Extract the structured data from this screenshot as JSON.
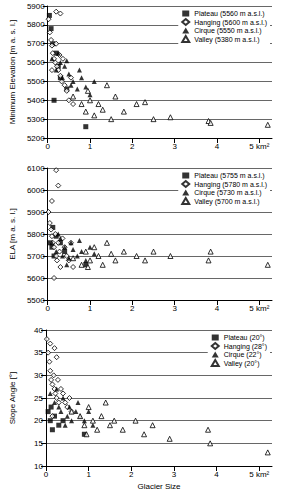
{
  "chart_data": [
    {
      "type": "scatter",
      "ylabel": "Minimum Elevation [m a. s. l.]",
      "xlim": [
        0,
        5.3
      ],
      "xticks": [
        0,
        1,
        2,
        3,
        4,
        {
          "value": 5,
          "label": "5 km²"
        }
      ],
      "ylim": [
        5200,
        5900
      ],
      "yticks": [
        5200,
        5300,
        5400,
        5500,
        5600,
        5700,
        5800,
        5900
      ],
      "grid": true,
      "legend": "upper right",
      "series": [
        {
          "name": "Plateau (5560 m a.s.l.)",
          "color": "#000000",
          "marker": "square",
          "values": [
            [
              0.04,
              5850
            ],
            [
              0.08,
              5780
            ],
            [
              0.12,
              5700
            ],
            [
              0.2,
              5650
            ],
            [
              0.25,
              5580
            ],
            [
              0.3,
              5520
            ],
            [
              0.45,
              5460
            ],
            [
              0.9,
              5260
            ],
            [
              0.15,
              5400
            ]
          ]
        },
        {
          "name": "Hanging (5600 m a.s.l.)",
          "color": "#000000",
          "marker": "open_diamond",
          "values": [
            [
              0.02,
              5830
            ],
            [
              0.05,
              5760
            ],
            [
              0.08,
              5720
            ],
            [
              0.1,
              5690
            ],
            [
              0.12,
              5650
            ],
            [
              0.15,
              5620
            ],
            [
              0.18,
              5600
            ],
            [
              0.2,
              5700
            ],
            [
              0.22,
              5580
            ],
            [
              0.25,
              5560
            ],
            [
              0.28,
              5640
            ],
            [
              0.3,
              5530
            ],
            [
              0.33,
              5500
            ],
            [
              0.36,
              5620
            ],
            [
              0.4,
              5480
            ],
            [
              0.45,
              5450
            ],
            [
              0.5,
              5400
            ],
            [
              0.55,
              5520
            ],
            [
              0.6,
              5380
            ],
            [
              0.2,
              5870
            ],
            [
              0.3,
              5860
            ],
            [
              0.1,
              5560
            ]
          ]
        },
        {
          "name": "Cirque (5550 m a.s.l.)",
          "color": "#000000",
          "marker": "triangle",
          "values": [
            [
              0.1,
              5620
            ],
            [
              0.2,
              5560
            ],
            [
              0.3,
              5600
            ],
            [
              0.35,
              5520
            ],
            [
              0.4,
              5580
            ],
            [
              0.5,
              5540
            ],
            [
              0.55,
              5480
            ],
            [
              0.6,
              5500
            ],
            [
              0.7,
              5460
            ],
            [
              0.75,
              5560
            ],
            [
              0.8,
              5520
            ],
            [
              0.9,
              5470
            ],
            [
              1.0,
              5430
            ],
            [
              1.1,
              5500
            ],
            [
              0.25,
              5650
            ],
            [
              0.45,
              5610
            ]
          ]
        },
        {
          "name": "Valley (5380 m a.s.l.)",
          "color": "#000000",
          "marker": "open_triangle",
          "values": [
            [
              0.6,
              5420
            ],
            [
              0.8,
              5380
            ],
            [
              0.9,
              5340
            ],
            [
              1.0,
              5400
            ],
            [
              1.1,
              5320
            ],
            [
              1.2,
              5380
            ],
            [
              1.3,
              5350
            ],
            [
              1.5,
              5300
            ],
            [
              1.6,
              5420
            ],
            [
              1.8,
              5340
            ],
            [
              2.1,
              5380
            ],
            [
              2.3,
              5390
            ],
            [
              2.5,
              5300
            ],
            [
              2.9,
              5310
            ],
            [
              3.8,
              5290
            ],
            [
              3.85,
              5280
            ],
            [
              5.2,
              5270
            ],
            [
              1.4,
              5480
            ],
            [
              0.95,
              5450
            ]
          ]
        }
      ]
    },
    {
      "type": "scatter",
      "ylabel": "ELA [m a. s. l.]",
      "xlim": [
        0,
        5.3
      ],
      "xticks": [
        0,
        1,
        2,
        3,
        4,
        {
          "value": 5,
          "label": "5 km²"
        }
      ],
      "ylim": [
        5500,
        6100
      ],
      "yticks": [
        5500,
        5600,
        5700,
        5800,
        5900,
        6000,
        6100
      ],
      "grid": true,
      "legend": "upper right",
      "series": [
        {
          "name": "Plateau (5755 m a.s.l.)",
          "color": "#000000",
          "marker": "square",
          "values": [
            [
              0.05,
              5760
            ],
            [
              0.1,
              5740
            ],
            [
              0.15,
              5700
            ],
            [
              0.2,
              5790
            ],
            [
              0.3,
              5760
            ],
            [
              0.4,
              5720
            ],
            [
              0.9,
              5660
            ],
            [
              0.12,
              5830
            ]
          ]
        },
        {
          "name": "Hanging (5780 m a.s.l.)",
          "color": "#000000",
          "marker": "open_diamond",
          "values": [
            [
              0.02,
              5900
            ],
            [
              0.05,
              5850
            ],
            [
              0.08,
              5820
            ],
            [
              0.1,
              5790
            ],
            [
              0.12,
              5760
            ],
            [
              0.15,
              5740
            ],
            [
              0.18,
              5800
            ],
            [
              0.2,
              5700
            ],
            [
              0.22,
              5680
            ],
            [
              0.25,
              5760
            ],
            [
              0.28,
              5720
            ],
            [
              0.3,
              5650
            ],
            [
              0.35,
              5780
            ],
            [
              0.4,
              5740
            ],
            [
              0.45,
              5700
            ],
            [
              0.5,
              5680
            ],
            [
              0.55,
              5760
            ],
            [
              0.6,
              5650
            ],
            [
              0.2,
              6090
            ],
            [
              0.25,
              6020
            ],
            [
              0.1,
              5950
            ],
            [
              0.15,
              5600
            ]
          ]
        },
        {
          "name": "Cirque (5730 m a.s.l.)",
          "color": "#000000",
          "marker": "triangle",
          "values": [
            [
              0.1,
              5760
            ],
            [
              0.2,
              5720
            ],
            [
              0.3,
              5780
            ],
            [
              0.35,
              5700
            ],
            [
              0.4,
              5740
            ],
            [
              0.5,
              5690
            ],
            [
              0.55,
              5760
            ],
            [
              0.6,
              5730
            ],
            [
              0.7,
              5700
            ],
            [
              0.75,
              5770
            ],
            [
              0.8,
              5720
            ],
            [
              0.9,
              5680
            ],
            [
              1.0,
              5740
            ],
            [
              1.1,
              5710
            ],
            [
              0.25,
              5800
            ],
            [
              0.45,
              5660
            ]
          ]
        },
        {
          "name": "Valley (5700 m a.s.l.)",
          "color": "#000000",
          "marker": "open_triangle",
          "values": [
            [
              0.6,
              5690
            ],
            [
              0.8,
              5660
            ],
            [
              0.9,
              5720
            ],
            [
              1.0,
              5680
            ],
            [
              1.1,
              5740
            ],
            [
              1.2,
              5700
            ],
            [
              1.3,
              5660
            ],
            [
              1.5,
              5710
            ],
            [
              1.6,
              5680
            ],
            [
              1.8,
              5720
            ],
            [
              2.1,
              5700
            ],
            [
              2.3,
              5680
            ],
            [
              2.5,
              5720
            ],
            [
              2.9,
              5700
            ],
            [
              3.8,
              5680
            ],
            [
              3.85,
              5720
            ],
            [
              5.2,
              5660
            ],
            [
              1.4,
              5760
            ],
            [
              0.95,
              5650
            ]
          ]
        }
      ]
    },
    {
      "type": "scatter",
      "ylabel": "Slope Angle [°]",
      "xlabel": "Glacier Size",
      "xlim": [
        0,
        5.3
      ],
      "xticks": [
        0,
        1,
        2,
        3,
        4,
        {
          "value": 5,
          "label": "5 km²"
        }
      ],
      "ylim": [
        10,
        40
      ],
      "yticks": [
        10,
        15,
        20,
        25,
        30,
        35,
        40
      ],
      "grid": true,
      "legend": "upper right",
      "series": [
        {
          "name": "Plateau (20°)",
          "color": "#000000",
          "marker": "square",
          "values": [
            [
              0.05,
              22
            ],
            [
              0.1,
              20
            ],
            [
              0.15,
              18
            ],
            [
              0.2,
              21
            ],
            [
              0.3,
              19
            ],
            [
              0.4,
              20
            ],
            [
              0.9,
              17
            ],
            [
              0.12,
              23
            ]
          ]
        },
        {
          "name": "Hanging (28°)",
          "color": "#000000",
          "marker": "open_diamond",
          "values": [
            [
              0.02,
              38
            ],
            [
              0.05,
              35
            ],
            [
              0.08,
              33
            ],
            [
              0.1,
              31
            ],
            [
              0.12,
              29
            ],
            [
              0.15,
              28
            ],
            [
              0.18,
              30
            ],
            [
              0.2,
              27
            ],
            [
              0.22,
              26
            ],
            [
              0.25,
              25
            ],
            [
              0.28,
              29
            ],
            [
              0.3,
              24
            ],
            [
              0.35,
              27
            ],
            [
              0.4,
              26
            ],
            [
              0.45,
              24
            ],
            [
              0.5,
              23
            ],
            [
              0.55,
              25
            ],
            [
              0.6,
              22
            ],
            [
              0.2,
              36
            ],
            [
              0.25,
              34
            ],
            [
              0.1,
              37
            ],
            [
              0.15,
              21
            ]
          ]
        },
        {
          "name": "Cirque (22°)",
          "color": "#000000",
          "marker": "triangle",
          "values": [
            [
              0.1,
              26
            ],
            [
              0.2,
              24
            ],
            [
              0.3,
              23
            ],
            [
              0.35,
              22
            ],
            [
              0.4,
              25
            ],
            [
              0.5,
              21
            ],
            [
              0.55,
              23
            ],
            [
              0.6,
              20
            ],
            [
              0.7,
              22
            ],
            [
              0.75,
              24
            ],
            [
              0.8,
              21
            ],
            [
              0.9,
              20
            ],
            [
              1.0,
              22
            ],
            [
              1.1,
              19
            ],
            [
              0.25,
              27
            ],
            [
              0.45,
              19
            ]
          ]
        },
        {
          "name": "Valley (20°)",
          "color": "#000000",
          "marker": "open_triangle",
          "values": [
            [
              0.6,
              22
            ],
            [
              0.8,
              21
            ],
            [
              0.9,
              19
            ],
            [
              1.0,
              23
            ],
            [
              1.1,
              20
            ],
            [
              1.2,
              18
            ],
            [
              1.3,
              21
            ],
            [
              1.5,
              19
            ],
            [
              1.6,
              20
            ],
            [
              1.8,
              18
            ],
            [
              2.1,
              20
            ],
            [
              2.3,
              17
            ],
            [
              2.5,
              19
            ],
            [
              2.9,
              16
            ],
            [
              3.8,
              18
            ],
            [
              3.85,
              15
            ],
            [
              5.2,
              13
            ],
            [
              1.4,
              24
            ],
            [
              0.95,
              17
            ]
          ]
        }
      ]
    }
  ]
}
